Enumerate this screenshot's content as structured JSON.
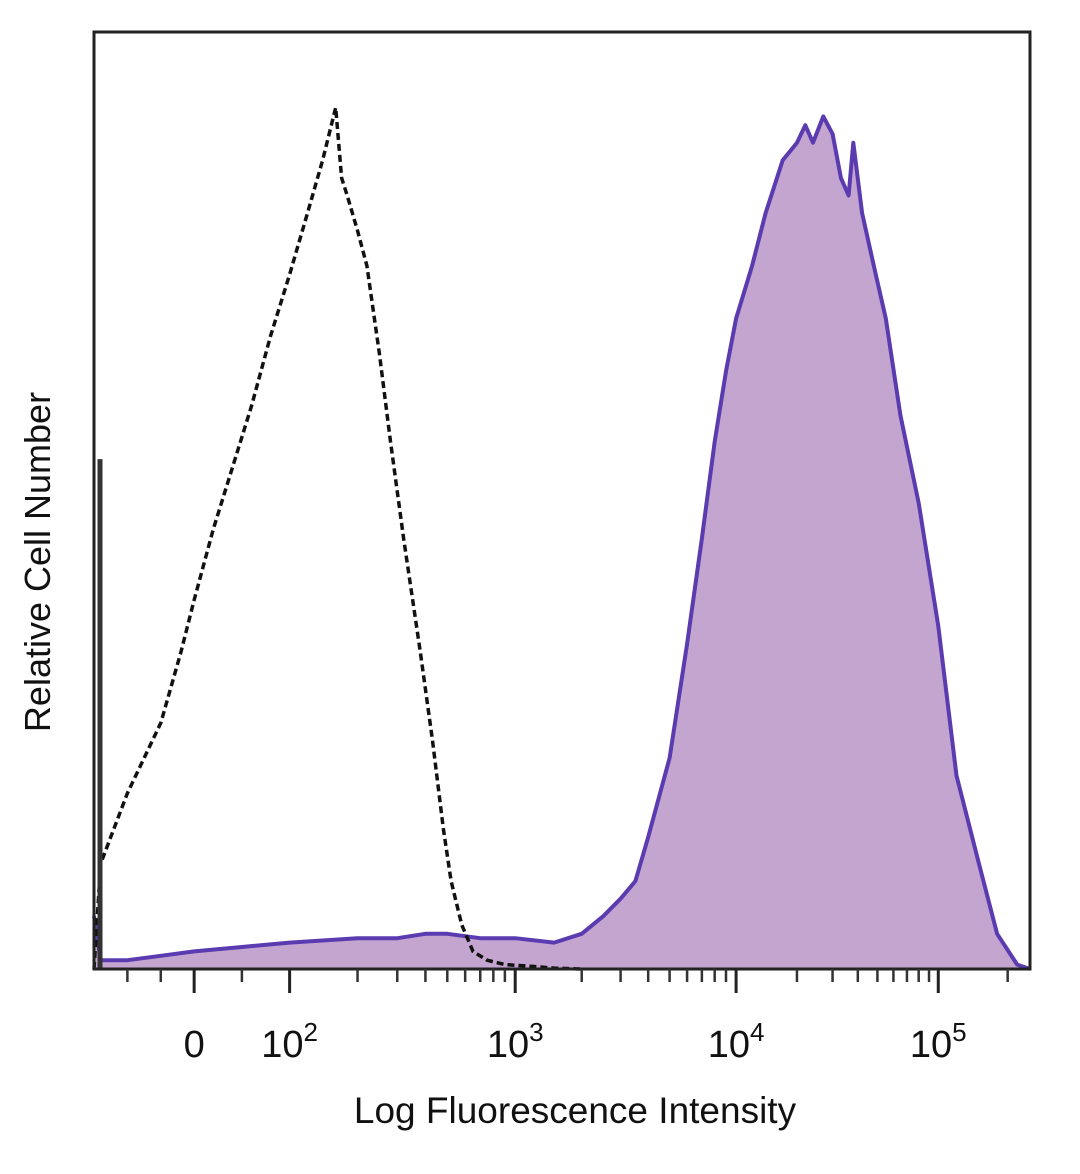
{
  "chart_data": {
    "type": "area",
    "title": "",
    "xlabel": "Log Fluorescence Intensity",
    "ylabel": "Relative Cell Number",
    "x_scale": "biexponential",
    "xlim": [
      -150,
      250000
    ],
    "ylim": [
      0,
      1
    ],
    "grid": false,
    "legend": "none",
    "x_ticks": [
      {
        "value": 0,
        "label": "0",
        "exp": ""
      },
      {
        "value": 100,
        "label": "10",
        "exp": "2"
      },
      {
        "value": 1000,
        "label": "10",
        "exp": "3"
      },
      {
        "value": 10000,
        "label": "10",
        "exp": "4"
      },
      {
        "value": 100000,
        "label": "10",
        "exp": "5"
      }
    ],
    "series": [
      {
        "style": "dashed-outline",
        "color": "#111111",
        "x": [
          -150,
          -140,
          -100,
          -50,
          -20,
          0,
          20,
          40,
          60,
          80,
          100,
          120,
          140,
          160,
          170,
          180,
          200,
          220,
          250,
          280,
          320,
          380,
          430,
          480,
          520,
          580,
          650,
          750,
          900,
          1200,
          1500,
          2000
        ],
        "y": [
          0.0,
          0.12,
          0.2,
          0.28,
          0.36,
          0.42,
          0.5,
          0.57,
          0.64,
          0.72,
          0.79,
          0.86,
          0.92,
          0.98,
          0.9,
          0.88,
          0.84,
          0.8,
          0.7,
          0.6,
          0.49,
          0.36,
          0.26,
          0.16,
          0.1,
          0.05,
          0.02,
          0.01,
          0.005,
          0.003,
          0.001,
          0.0
        ]
      },
      {
        "style": "filled",
        "color": "#5a3bb0",
        "fill": "#c4a5d0",
        "x": [
          -150,
          -140,
          -100,
          -50,
          0,
          50,
          100,
          200,
          300,
          400,
          500,
          700,
          1000,
          1500,
          2000,
          2500,
          3000,
          3500,
          4000,
          5000,
          6000,
          7000,
          8000,
          9000,
          10000,
          12000,
          14000,
          17000,
          20000,
          22000,
          24000,
          27000,
          30000,
          33000,
          36000,
          38000,
          42000,
          48000,
          55000,
          65000,
          80000,
          100000,
          120000,
          150000,
          180000,
          220000,
          250000
        ],
        "y": [
          0.06,
          0.01,
          0.01,
          0.015,
          0.02,
          0.025,
          0.03,
          0.035,
          0.035,
          0.04,
          0.04,
          0.035,
          0.035,
          0.03,
          0.04,
          0.06,
          0.08,
          0.1,
          0.15,
          0.24,
          0.37,
          0.49,
          0.6,
          0.68,
          0.74,
          0.8,
          0.86,
          0.92,
          0.94,
          0.96,
          0.94,
          0.97,
          0.95,
          0.9,
          0.88,
          0.94,
          0.86,
          0.8,
          0.74,
          0.63,
          0.53,
          0.39,
          0.22,
          0.12,
          0.04,
          0.005,
          0.0
        ]
      }
    ],
    "annotations": [
      {
        "type": "vertical-marker",
        "x": -140,
        "y_top": 0.58
      }
    ]
  }
}
